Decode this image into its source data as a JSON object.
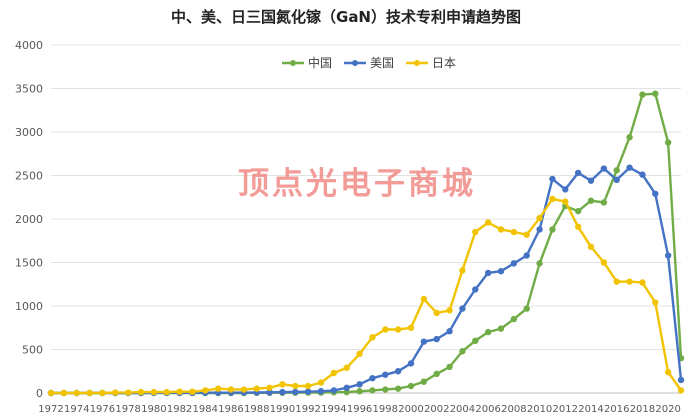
{
  "chart_data": {
    "type": "line",
    "title": "中、美、日三国氮化镓（GaN）技术专利申请趋势图",
    "xlabel": "",
    "ylabel": "",
    "ylim": [
      0,
      4000
    ],
    "yticks": [
      0,
      500,
      1000,
      1500,
      2000,
      2500,
      3000,
      3500,
      4000
    ],
    "grid": true,
    "legend_position": "top-center",
    "x": [
      1972,
      1973,
      1974,
      1975,
      1976,
      1977,
      1978,
      1979,
      1980,
      1981,
      1982,
      1983,
      1984,
      1985,
      1986,
      1987,
      1988,
      1989,
      1990,
      1991,
      1992,
      1993,
      1994,
      1995,
      1996,
      1997,
      1998,
      1999,
      2000,
      2001,
      2002,
      2003,
      2004,
      2005,
      2006,
      2007,
      2008,
      2009,
      2010,
      2011,
      2012,
      2013,
      2014,
      2015,
      2016,
      2017,
      2018,
      2019,
      2020,
      2021
    ],
    "xtick_labels": [
      "1972",
      "1974",
      "1976",
      "1978",
      "1980",
      "1982",
      "1984",
      "1986",
      "1988",
      "1990",
      "1992",
      "1994",
      "1996",
      "1998",
      "2000",
      "2002",
      "2004",
      "2006",
      "2008",
      "2010",
      "2012",
      "2014",
      "2016",
      "2018",
      "2020"
    ],
    "series": [
      {
        "name": "中国",
        "color": "#70ad47",
        "values": [
          0,
          0,
          0,
          0,
          0,
          0,
          0,
          0,
          0,
          0,
          0,
          0,
          0,
          0,
          0,
          0,
          2,
          2,
          3,
          3,
          5,
          5,
          8,
          10,
          20,
          30,
          40,
          50,
          80,
          130,
          220,
          300,
          480,
          600,
          700,
          740,
          850,
          970,
          1490,
          1880,
          2150,
          2090,
          2210,
          2190,
          2560,
          2940,
          3430,
          3440,
          2880,
          400
        ]
      },
      {
        "name": "美国",
        "color": "#4472c4",
        "values": [
          0,
          0,
          0,
          0,
          0,
          0,
          0,
          0,
          2,
          2,
          2,
          2,
          3,
          3,
          4,
          5,
          6,
          8,
          10,
          12,
          15,
          20,
          30,
          60,
          100,
          170,
          210,
          250,
          340,
          590,
          620,
          710,
          970,
          1190,
          1380,
          1400,
          1490,
          1580,
          1880,
          2460,
          2340,
          2530,
          2440,
          2580,
          2450,
          2590,
          2510,
          2290,
          1580,
          150
        ]
      },
      {
        "name": "日本",
        "color": "#f2c300",
        "values": [
          0,
          0,
          0,
          0,
          0,
          5,
          5,
          10,
          10,
          10,
          15,
          15,
          30,
          50,
          40,
          40,
          50,
          60,
          100,
          80,
          80,
          120,
          230,
          290,
          450,
          640,
          730,
          730,
          750,
          1080,
          920,
          950,
          1410,
          1850,
          1960,
          1880,
          1850,
          1820,
          2010,
          2230,
          2200,
          1910,
          1680,
          1500,
          1280,
          1280,
          1270,
          1040,
          240,
          30
        ]
      }
    ]
  },
  "watermark_text": "顶点光电子商城"
}
